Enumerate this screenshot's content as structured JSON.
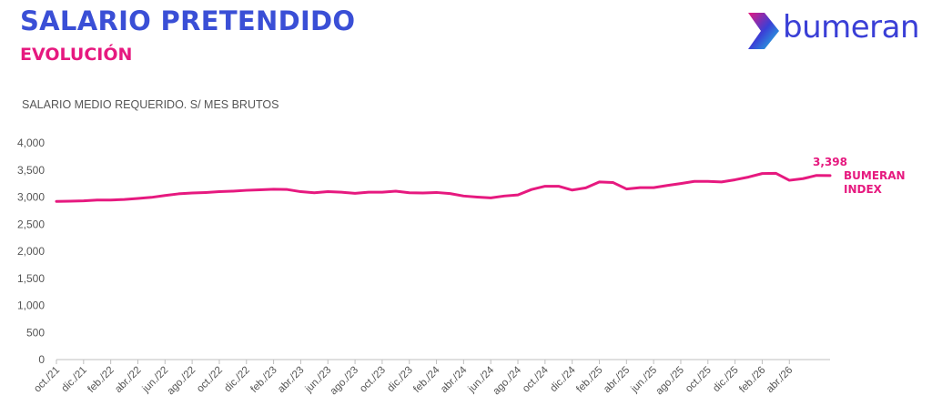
{
  "header": {
    "title": "SALARIO PRETENDIDO",
    "subtitle": "EVOLUCIÓN"
  },
  "brand": {
    "logo_text": "bumeran",
    "logo_colors": [
      "#e6197f",
      "#3a3fd6",
      "#20c8e0"
    ]
  },
  "colors": {
    "title": "#3a4fd6",
    "accent": "#e6197f",
    "axis": "#555555",
    "grid": "#bfbfbf"
  },
  "chart_data": {
    "type": "line",
    "ylabel": "SALARIO MEDIO REQUERIDO. S/ MES BRUTOS",
    "ylim": [
      0,
      4000
    ],
    "yticks": [
      0,
      500,
      1000,
      1500,
      2000,
      2500,
      3000,
      3500,
      4000
    ],
    "ytick_labels": [
      "0",
      "500",
      "1,000",
      "1,500",
      "2,000",
      "2,500",
      "3,000",
      "3,500",
      "4,000"
    ],
    "x_tick_labels": [
      "oct./21",
      "dic./21",
      "feb./22",
      "abr./22",
      "jun./22",
      "ago./22",
      "oct./22",
      "dic./22",
      "feb./23",
      "abr./23",
      "jun./23",
      "ago./23",
      "oct./23",
      "dic./23",
      "feb./24",
      "abr./24",
      "jun./24",
      "ago./24",
      "oct./24",
      "dic./24",
      "feb./25",
      "abr./25",
      "jun./25",
      "ago./25",
      "oct./25",
      "dic./25",
      "feb./26",
      "abr./26"
    ],
    "series": [
      {
        "name_line1": "BUMERAN",
        "name_line2": "INDEX",
        "color": "#e6197f",
        "last_value_label": "3,398",
        "values": [
          2920,
          2925,
          2930,
          2945,
          2945,
          2955,
          2975,
          2995,
          3030,
          3060,
          3075,
          3085,
          3100,
          3110,
          3125,
          3135,
          3145,
          3140,
          3100,
          3080,
          3100,
          3090,
          3070,
          3090,
          3090,
          3110,
          3080,
          3075,
          3085,
          3065,
          3020,
          3000,
          2985,
          3020,
          3040,
          3140,
          3200,
          3200,
          3130,
          3170,
          3280,
          3270,
          3150,
          3175,
          3175,
          3215,
          3250,
          3290,
          3290,
          3280,
          3320,
          3370,
          3435,
          3440,
          3310,
          3340,
          3400,
          3398
        ]
      }
    ]
  }
}
